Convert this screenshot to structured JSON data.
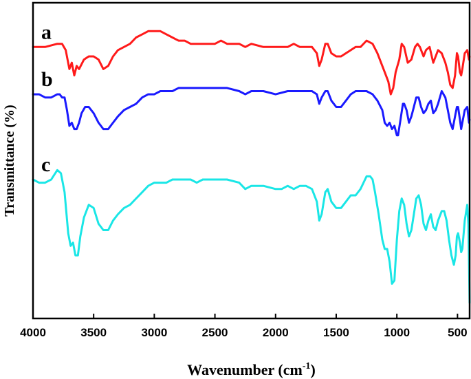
{
  "chart_data": {
    "type": "line",
    "title": "",
    "xlabel": "Wavenumber (cm",
    "xlabel_sup": "-1",
    "xlabel_close": ")",
    "ylabel": "Transmittance (%)",
    "xlim": [
      4000,
      400
    ],
    "ylim": [
      0,
      1
    ],
    "x_reversed": true,
    "grid": false,
    "legend": "none",
    "x_ticks": [
      4000,
      3500,
      3000,
      2500,
      2000,
      1500,
      1000,
      500
    ],
    "series": [
      {
        "name": "a",
        "color": "#ff1a1a",
        "points": [
          [
            4000,
            0.86
          ],
          [
            3900,
            0.86
          ],
          [
            3800,
            0.87
          ],
          [
            3760,
            0.87
          ],
          [
            3730,
            0.85
          ],
          [
            3700,
            0.79
          ],
          [
            3680,
            0.81
          ],
          [
            3660,
            0.77
          ],
          [
            3640,
            0.8
          ],
          [
            3620,
            0.79
          ],
          [
            3580,
            0.82
          ],
          [
            3540,
            0.83
          ],
          [
            3500,
            0.83
          ],
          [
            3460,
            0.82
          ],
          [
            3420,
            0.79
          ],
          [
            3380,
            0.8
          ],
          [
            3340,
            0.83
          ],
          [
            3300,
            0.85
          ],
          [
            3250,
            0.86
          ],
          [
            3200,
            0.87
          ],
          [
            3150,
            0.89
          ],
          [
            3100,
            0.9
          ],
          [
            3050,
            0.91
          ],
          [
            3000,
            0.91
          ],
          [
            2950,
            0.91
          ],
          [
            2900,
            0.9
          ],
          [
            2850,
            0.89
          ],
          [
            2800,
            0.88
          ],
          [
            2750,
            0.88
          ],
          [
            2700,
            0.87
          ],
          [
            2600,
            0.87
          ],
          [
            2500,
            0.87
          ],
          [
            2450,
            0.88
          ],
          [
            2400,
            0.87
          ],
          [
            2300,
            0.87
          ],
          [
            2250,
            0.86
          ],
          [
            2200,
            0.87
          ],
          [
            2100,
            0.86
          ],
          [
            2000,
            0.86
          ],
          [
            1900,
            0.86
          ],
          [
            1850,
            0.87
          ],
          [
            1800,
            0.86
          ],
          [
            1700,
            0.86
          ],
          [
            1660,
            0.84
          ],
          [
            1640,
            0.8
          ],
          [
            1620,
            0.82
          ],
          [
            1590,
            0.87
          ],
          [
            1570,
            0.87
          ],
          [
            1540,
            0.84
          ],
          [
            1500,
            0.83
          ],
          [
            1460,
            0.83
          ],
          [
            1420,
            0.84
          ],
          [
            1380,
            0.85
          ],
          [
            1340,
            0.86
          ],
          [
            1300,
            0.86
          ],
          [
            1250,
            0.88
          ],
          [
            1200,
            0.87
          ],
          [
            1160,
            0.84
          ],
          [
            1120,
            0.8
          ],
          [
            1090,
            0.77
          ],
          [
            1070,
            0.75
          ],
          [
            1050,
            0.71
          ],
          [
            1030,
            0.73
          ],
          [
            1010,
            0.78
          ],
          [
            980,
            0.82
          ],
          [
            960,
            0.87
          ],
          [
            940,
            0.86
          ],
          [
            910,
            0.81
          ],
          [
            880,
            0.82
          ],
          [
            850,
            0.86
          ],
          [
            830,
            0.87
          ],
          [
            810,
            0.86
          ],
          [
            780,
            0.83
          ],
          [
            760,
            0.85
          ],
          [
            730,
            0.86
          ],
          [
            700,
            0.81
          ],
          [
            680,
            0.83
          ],
          [
            660,
            0.85
          ],
          [
            630,
            0.84
          ],
          [
            600,
            0.81
          ],
          [
            580,
            0.78
          ],
          [
            560,
            0.74
          ],
          [
            540,
            0.73
          ],
          [
            520,
            0.77
          ],
          [
            505,
            0.84
          ],
          [
            495,
            0.83
          ],
          [
            480,
            0.78
          ],
          [
            470,
            0.77
          ],
          [
            460,
            0.79
          ],
          [
            440,
            0.84
          ],
          [
            420,
            0.85
          ],
          [
            405,
            0.82
          ],
          [
            400,
            0.83
          ]
        ]
      },
      {
        "name": "b",
        "color": "#1a1aff",
        "points": [
          [
            4000,
            0.71
          ],
          [
            3950,
            0.71
          ],
          [
            3900,
            0.7
          ],
          [
            3850,
            0.7
          ],
          [
            3800,
            0.71
          ],
          [
            3780,
            0.71
          ],
          [
            3760,
            0.7
          ],
          [
            3740,
            0.7
          ],
          [
            3720,
            0.66
          ],
          [
            3700,
            0.61
          ],
          [
            3680,
            0.62
          ],
          [
            3660,
            0.6
          ],
          [
            3640,
            0.6
          ],
          [
            3620,
            0.62
          ],
          [
            3600,
            0.65
          ],
          [
            3570,
            0.67
          ],
          [
            3540,
            0.67
          ],
          [
            3500,
            0.65
          ],
          [
            3460,
            0.62
          ],
          [
            3420,
            0.6
          ],
          [
            3380,
            0.6
          ],
          [
            3340,
            0.62
          ],
          [
            3300,
            0.64
          ],
          [
            3250,
            0.66
          ],
          [
            3200,
            0.67
          ],
          [
            3150,
            0.68
          ],
          [
            3100,
            0.7
          ],
          [
            3050,
            0.71
          ],
          [
            3000,
            0.71
          ],
          [
            2950,
            0.72
          ],
          [
            2900,
            0.72
          ],
          [
            2850,
            0.72
          ],
          [
            2800,
            0.73
          ],
          [
            2700,
            0.73
          ],
          [
            2600,
            0.73
          ],
          [
            2500,
            0.73
          ],
          [
            2450,
            0.73
          ],
          [
            2400,
            0.73
          ],
          [
            2300,
            0.72
          ],
          [
            2250,
            0.71
          ],
          [
            2200,
            0.72
          ],
          [
            2100,
            0.72
          ],
          [
            2000,
            0.71
          ],
          [
            1900,
            0.72
          ],
          [
            1850,
            0.72
          ],
          [
            1800,
            0.72
          ],
          [
            1700,
            0.72
          ],
          [
            1660,
            0.71
          ],
          [
            1640,
            0.68
          ],
          [
            1620,
            0.7
          ],
          [
            1590,
            0.72
          ],
          [
            1570,
            0.72
          ],
          [
            1540,
            0.69
          ],
          [
            1500,
            0.67
          ],
          [
            1460,
            0.67
          ],
          [
            1420,
            0.69
          ],
          [
            1380,
            0.71
          ],
          [
            1340,
            0.72
          ],
          [
            1300,
            0.72
          ],
          [
            1250,
            0.72
          ],
          [
            1200,
            0.71
          ],
          [
            1160,
            0.69
          ],
          [
            1120,
            0.66
          ],
          [
            1100,
            0.62
          ],
          [
            1080,
            0.61
          ],
          [
            1060,
            0.62
          ],
          [
            1040,
            0.6
          ],
          [
            1020,
            0.61
          ],
          [
            1000,
            0.58
          ],
          [
            990,
            0.58
          ],
          [
            970,
            0.63
          ],
          [
            950,
            0.68
          ],
          [
            940,
            0.68
          ],
          [
            920,
            0.66
          ],
          [
            900,
            0.62
          ],
          [
            880,
            0.64
          ],
          [
            860,
            0.67
          ],
          [
            840,
            0.7
          ],
          [
            820,
            0.7
          ],
          [
            800,
            0.67
          ],
          [
            780,
            0.65
          ],
          [
            760,
            0.66
          ],
          [
            740,
            0.68
          ],
          [
            720,
            0.69
          ],
          [
            700,
            0.65
          ],
          [
            680,
            0.66
          ],
          [
            660,
            0.68
          ],
          [
            630,
            0.72
          ],
          [
            600,
            0.7
          ],
          [
            580,
            0.66
          ],
          [
            560,
            0.62
          ],
          [
            540,
            0.6
          ],
          [
            520,
            0.64
          ],
          [
            505,
            0.67
          ],
          [
            495,
            0.67
          ],
          [
            480,
            0.63
          ],
          [
            470,
            0.6
          ],
          [
            460,
            0.62
          ],
          [
            440,
            0.66
          ],
          [
            420,
            0.67
          ],
          [
            405,
            0.62
          ],
          [
            400,
            0.63
          ]
        ]
      },
      {
        "name": "c",
        "color": "#1ae6e6",
        "points": [
          [
            4000,
            0.44
          ],
          [
            3950,
            0.43
          ],
          [
            3900,
            0.43
          ],
          [
            3850,
            0.44
          ],
          [
            3800,
            0.47
          ],
          [
            3770,
            0.46
          ],
          [
            3740,
            0.4
          ],
          [
            3710,
            0.27
          ],
          [
            3690,
            0.23
          ],
          [
            3670,
            0.24
          ],
          [
            3650,
            0.2
          ],
          [
            3630,
            0.2
          ],
          [
            3610,
            0.26
          ],
          [
            3580,
            0.32
          ],
          [
            3540,
            0.36
          ],
          [
            3500,
            0.35
          ],
          [
            3460,
            0.3
          ],
          [
            3420,
            0.28
          ],
          [
            3380,
            0.28
          ],
          [
            3340,
            0.31
          ],
          [
            3300,
            0.33
          ],
          [
            3250,
            0.35
          ],
          [
            3200,
            0.36
          ],
          [
            3150,
            0.38
          ],
          [
            3100,
            0.4
          ],
          [
            3050,
            0.42
          ],
          [
            3000,
            0.43
          ],
          [
            2950,
            0.43
          ],
          [
            2900,
            0.43
          ],
          [
            2850,
            0.44
          ],
          [
            2800,
            0.44
          ],
          [
            2750,
            0.44
          ],
          [
            2700,
            0.44
          ],
          [
            2650,
            0.43
          ],
          [
            2600,
            0.44
          ],
          [
            2500,
            0.44
          ],
          [
            2450,
            0.44
          ],
          [
            2400,
            0.44
          ],
          [
            2300,
            0.43
          ],
          [
            2250,
            0.41
          ],
          [
            2200,
            0.42
          ],
          [
            2100,
            0.42
          ],
          [
            2000,
            0.41
          ],
          [
            1950,
            0.41
          ],
          [
            1900,
            0.42
          ],
          [
            1850,
            0.41
          ],
          [
            1800,
            0.42
          ],
          [
            1750,
            0.42
          ],
          [
            1700,
            0.41
          ],
          [
            1660,
            0.37
          ],
          [
            1640,
            0.31
          ],
          [
            1620,
            0.33
          ],
          [
            1590,
            0.4
          ],
          [
            1570,
            0.41
          ],
          [
            1540,
            0.37
          ],
          [
            1500,
            0.35
          ],
          [
            1460,
            0.35
          ],
          [
            1420,
            0.37
          ],
          [
            1380,
            0.39
          ],
          [
            1340,
            0.39
          ],
          [
            1300,
            0.41
          ],
          [
            1250,
            0.45
          ],
          [
            1220,
            0.45
          ],
          [
            1200,
            0.44
          ],
          [
            1180,
            0.4
          ],
          [
            1150,
            0.33
          ],
          [
            1120,
            0.25
          ],
          [
            1100,
            0.22
          ],
          [
            1080,
            0.22
          ],
          [
            1060,
            0.18
          ],
          [
            1040,
            0.11
          ],
          [
            1020,
            0.12
          ],
          [
            1000,
            0.25
          ],
          [
            980,
            0.34
          ],
          [
            960,
            0.38
          ],
          [
            940,
            0.36
          ],
          [
            920,
            0.3
          ],
          [
            900,
            0.26
          ],
          [
            880,
            0.28
          ],
          [
            860,
            0.33
          ],
          [
            840,
            0.38
          ],
          [
            820,
            0.39
          ],
          [
            800,
            0.36
          ],
          [
            780,
            0.3
          ],
          [
            760,
            0.28
          ],
          [
            740,
            0.31
          ],
          [
            720,
            0.33
          ],
          [
            700,
            0.29
          ],
          [
            680,
            0.28
          ],
          [
            660,
            0.31
          ],
          [
            630,
            0.34
          ],
          [
            610,
            0.34
          ],
          [
            590,
            0.31
          ],
          [
            570,
            0.25
          ],
          [
            550,
            0.2
          ],
          [
            530,
            0.17
          ],
          [
            515,
            0.2
          ],
          [
            505,
            0.26
          ],
          [
            495,
            0.27
          ],
          [
            480,
            0.24
          ],
          [
            470,
            0.21
          ],
          [
            460,
            0.22
          ],
          [
            440,
            0.31
          ],
          [
            420,
            0.36
          ],
          [
            410,
            0.3
          ],
          [
            405,
            0.18
          ],
          [
            400,
            0.05
          ]
        ]
      }
    ]
  }
}
